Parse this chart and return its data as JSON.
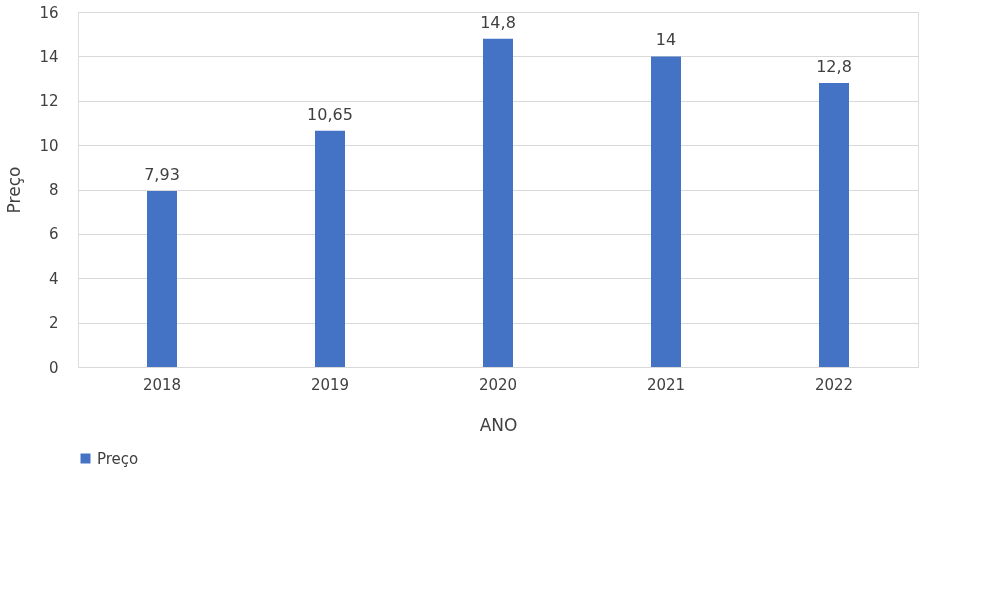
{
  "chart_data": {
    "type": "bar",
    "xlabel": "ANO",
    "ylabel": "Preço",
    "categories": [
      "2018",
      "2019",
      "2020",
      "2021",
      "2022"
    ],
    "series": [
      {
        "name": "Preço",
        "color": "#4472c4",
        "values": [
          7.93,
          10.65,
          14.8,
          14,
          12.8
        ],
        "value_labels": [
          "7,93",
          "10,65",
          "14,8",
          "14",
          "12,8"
        ]
      }
    ],
    "ylim": [
      0,
      16
    ],
    "yticks": [
      0,
      2,
      4,
      6,
      8,
      10,
      12,
      14,
      16
    ],
    "grid": "y",
    "legend": "bottom"
  }
}
